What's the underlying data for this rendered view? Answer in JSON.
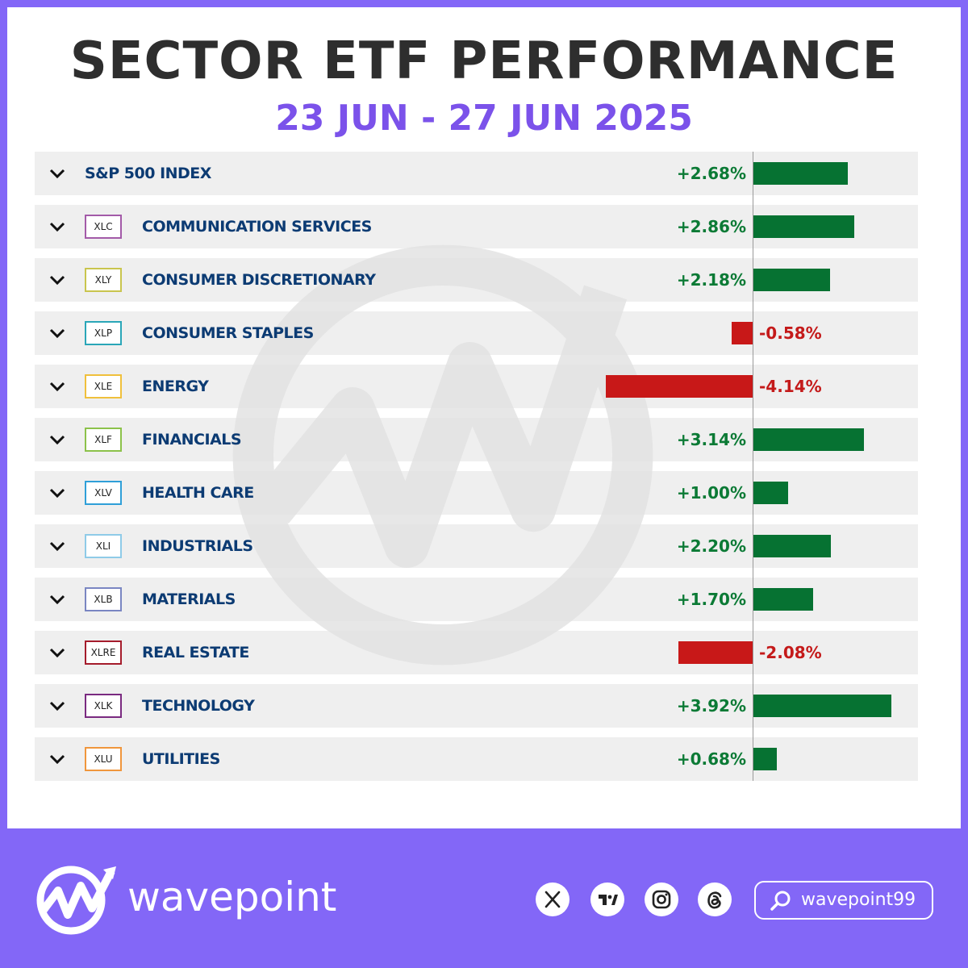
{
  "header": {
    "title": "SECTOR ETF PERFORMANCE",
    "date_range": "23 JUN - 27 JUN 2025"
  },
  "colors": {
    "positive": "#067232",
    "negative": "#c81818",
    "accent": "#8367f7",
    "date_text": "#7b52ea",
    "label_text": "#0c3b73"
  },
  "chart_data": {
    "type": "bar",
    "orientation": "horizontal",
    "categories": [
      "S&P 500 INDEX",
      "COMMUNICATION SERVICES",
      "CONSUMER DISCRETIONARY",
      "CONSUMER STAPLES",
      "ENERGY",
      "FINANCIALS",
      "HEALTH CARE",
      "INDUSTRIALS",
      "MATERIALS",
      "REAL ESTATE",
      "TECHNOLOGY",
      "UTILITIES"
    ],
    "tickers": [
      "",
      "XLC",
      "XLY",
      "XLP",
      "XLE",
      "XLF",
      "XLV",
      "XLI",
      "XLB",
      "XLRE",
      "XLK",
      "XLU"
    ],
    "ticker_colors": [
      "",
      "#a35aa8",
      "#c9c54e",
      "#2aa6b8",
      "#f0c03c",
      "#8cc24a",
      "#2f9fd8",
      "#8fcbe8",
      "#7a86c2",
      "#a51c2c",
      "#7a2a80",
      "#f0963c"
    ],
    "values": [
      2.68,
      2.86,
      2.18,
      -0.58,
      -4.14,
      3.14,
      1.0,
      2.2,
      1.7,
      -2.08,
      3.92,
      0.68
    ],
    "labels": [
      "+2.68%",
      "+2.86%",
      "+2.18%",
      "-0.58%",
      "-4.14%",
      "+3.14%",
      "+1.00%",
      "+2.20%",
      "+1.70%",
      "-2.08%",
      "+3.92%",
      "+0.68%"
    ],
    "title": "SECTOR ETF PERFORMANCE",
    "subtitle": "23 JUN - 27 JUN 2025",
    "xlim": [
      -4.14,
      3.92
    ],
    "grid": false,
    "legend": "none"
  },
  "footer": {
    "brand": "wavepoint",
    "handle": "wavepoint99",
    "social_icons": [
      "x-icon",
      "tradingview-icon",
      "instagram-icon",
      "threads-icon"
    ]
  }
}
